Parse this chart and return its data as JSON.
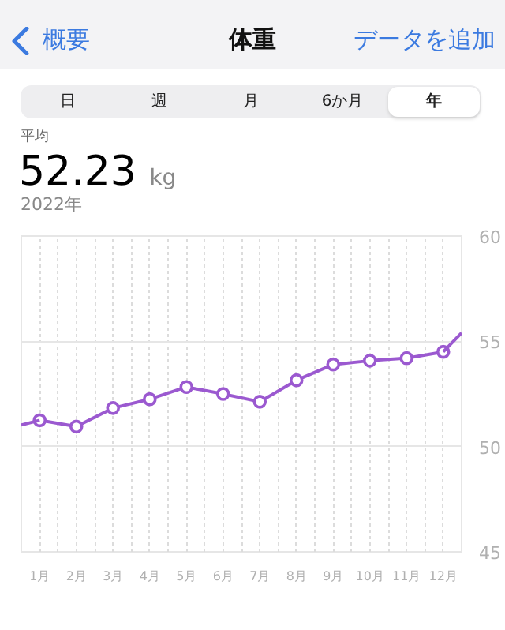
{
  "chart_data": {
    "type": "line",
    "title": "体重",
    "annotations": [
      "概要",
      "データを追加",
      "日",
      "週",
      "月",
      "6か月",
      "年",
      "平均",
      "52.23",
      "kg",
      "2022年"
    ],
    "x": [
      1,
      2,
      3,
      4,
      5,
      6,
      7,
      8,
      9,
      10,
      11,
      12
    ],
    "series": [
      {
        "color": "#9b59d0",
        "values": [
          51.25,
          50.95,
          51.83,
          52.25,
          52.83,
          52.5,
          52.13,
          53.15,
          53.9,
          54.08,
          54.2,
          54.5
        ]
      },
      {
        "color": "#9b59d0",
        "x": [
          0.5,
          1,
          6,
          12,
          12.5
        ],
        "values": [
          51.03,
          51.25,
          null,
          54.5,
          55.4
        ],
        "marker": "none"
      }
    ],
    "xlim": [
      0.5,
      12.5
    ],
    "xticks": [
      {
        "value": 1,
        "label": "1月"
      },
      {
        "value": 2,
        "label": "2月"
      },
      {
        "value": 3,
        "label": "3月"
      },
      {
        "value": 4,
        "label": "4月"
      },
      {
        "value": 5,
        "label": "5月"
      },
      {
        "value": 6,
        "label": "6月"
      },
      {
        "value": 7,
        "label": "7月"
      },
      {
        "value": 8,
        "label": "8月"
      },
      {
        "value": 9,
        "label": "9月"
      },
      {
        "value": 10,
        "label": "10月"
      },
      {
        "value": 11,
        "label": "11月"
      },
      {
        "value": 12,
        "label": "12月"
      },
      {
        "value": 1.5,
        "label": null
      },
      {
        "value": 2.5,
        "label": null
      },
      {
        "value": 3.5,
        "label": null
      },
      {
        "value": 4.5,
        "label": null
      },
      {
        "value": 5.5,
        "label": null
      },
      {
        "value": 6.5,
        "label": null
      },
      {
        "value": 7.5,
        "label": null
      },
      {
        "value": 8.5,
        "label": null
      },
      {
        "value": 9.5,
        "label": null
      },
      {
        "value": 10.5,
        "label": null
      },
      {
        "value": 11.5,
        "label": null
      }
    ],
    "ylim": [
      45,
      60
    ],
    "yticks": [
      45,
      50,
      55,
      60
    ],
    "grid": true,
    "marker": "circle",
    "line_style": "solid"
  }
}
